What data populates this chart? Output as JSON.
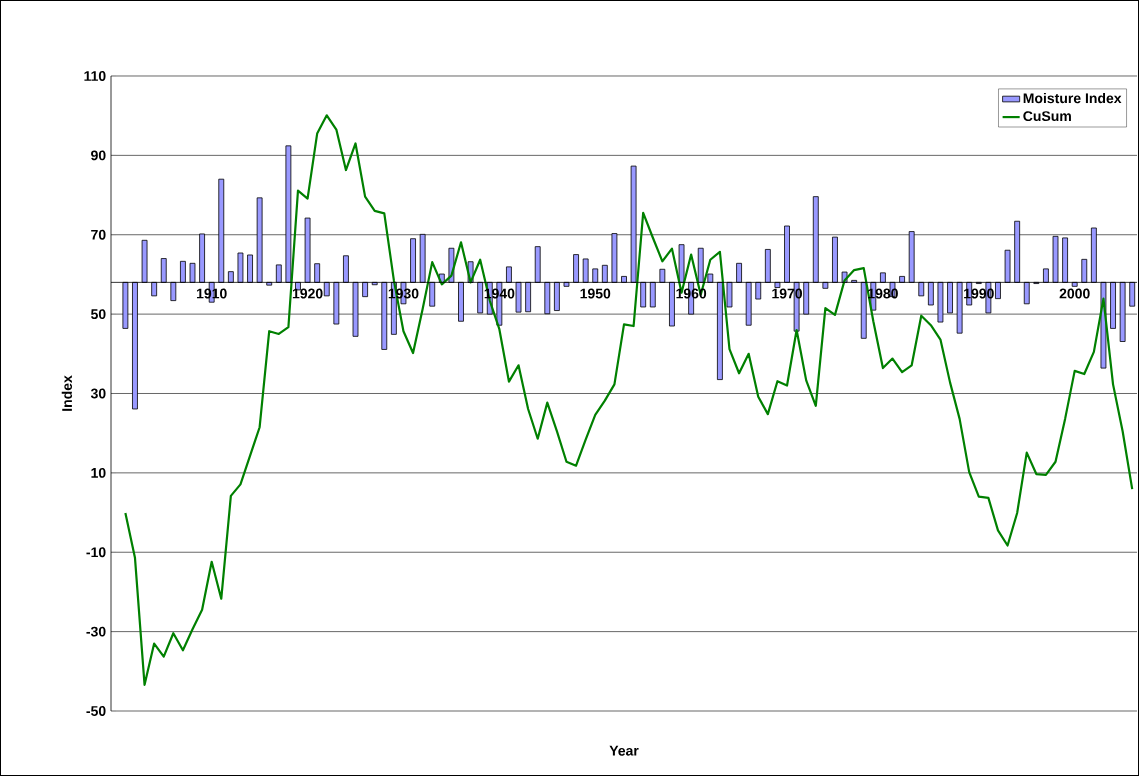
{
  "chart_data": {
    "type": "bar",
    "xlabel": "Year",
    "ylabel": "Index",
    "categories": [
      null,
      null,
      null,
      null,
      null,
      null,
      null,
      null,
      null,
      null,
      "1910",
      null,
      null,
      null,
      null,
      null,
      null,
      null,
      null,
      null,
      "1920",
      null,
      null,
      null,
      null,
      null,
      null,
      null,
      null,
      null,
      "1930",
      null,
      null,
      null,
      null,
      null,
      null,
      null,
      null,
      null,
      "1940",
      null,
      null,
      null,
      null,
      null,
      null,
      null,
      null,
      null,
      "1950",
      null,
      null,
      null,
      null,
      null,
      null,
      null,
      null,
      null,
      "1960",
      null,
      null,
      null,
      null,
      null,
      null,
      null,
      null,
      null,
      "1970",
      null,
      null,
      null,
      null,
      null,
      null,
      null,
      null,
      null,
      "1980",
      null,
      null,
      null,
      null,
      null,
      null,
      null,
      null,
      null,
      "1990",
      null,
      null,
      null,
      null,
      null,
      null,
      null,
      null,
      null,
      "2000",
      null,
      null,
      null,
      null,
      null,
      null
    ],
    "ylim": [
      -50,
      110
    ],
    "yticks": [
      -50,
      -30,
      -10,
      10,
      30,
      50,
      70,
      90,
      110
    ],
    "grid": true,
    "legend": "top right",
    "series": [
      {
        "name": "Moisture Index",
        "color": "#9999ff",
        "base": [
          null,
          58,
          58,
          58,
          58,
          58,
          58,
          58,
          58,
          58,
          58,
          58,
          58,
          58,
          58,
          58,
          58,
          58,
          58,
          58,
          58,
          58,
          58,
          58,
          58,
          58,
          58,
          58,
          58,
          58,
          58,
          58,
          58,
          58,
          58,
          58,
          58,
          58,
          58,
          58,
          58,
          58,
          58,
          58,
          58,
          58,
          58,
          58,
          58,
          58,
          58,
          58,
          58,
          58,
          58,
          58,
          58,
          58,
          58,
          58,
          58,
          58,
          58,
          58,
          58,
          58,
          58,
          58,
          58,
          58,
          58,
          58,
          58,
          58,
          58,
          58,
          58,
          58,
          58,
          58,
          58,
          58,
          58,
          58,
          58,
          58,
          58,
          58,
          58,
          58,
          58,
          58,
          58,
          58,
          58,
          58,
          58,
          58,
          58,
          58,
          58,
          58,
          58,
          58,
          58,
          58,
          58
        ],
        "values": [
          null,
          -11.6,
          -31.9,
          10.6,
          -3.4,
          6.0,
          -4.6,
          5.3,
          4.8,
          12.2,
          -5,
          26.0,
          2.7,
          7.4,
          6.9,
          21.3,
          -0.7,
          4.4,
          34.4,
          -1.9,
          16.2,
          4.7,
          -3.4,
          -10.5,
          6.7,
          -13.6,
          -3.6,
          -0.6,
          -16.9,
          -13.1,
          -5.4,
          11.0,
          12.1,
          -6.0,
          2.1,
          8.6,
          -9.8,
          5.2,
          -7.7,
          -8,
          -10.8,
          3.9,
          -7.5,
          -7.4,
          9.0,
          -7.9,
          -7.1,
          -1.0,
          7.0,
          5.9,
          3.4,
          4.3,
          12.3,
          1.5,
          29.3,
          -6.2,
          -6.2,
          3.3,
          -11.0,
          9.5,
          -8,
          8.6,
          2.1,
          -24.5,
          -6.2,
          4.8,
          -10.8,
          -4.2,
          8.3,
          -1.3,
          14.2,
          -12.3,
          -8,
          21.6,
          -1.5,
          11.4,
          2.6,
          0.5,
          -14.1,
          -7,
          2.4,
          -3.6,
          1.5,
          12.8,
          -3.4,
          -5.7,
          -10.0,
          -7.7,
          -12.8,
          -5.7,
          -0.3,
          -7.7,
          -4.1,
          8.1,
          15.4,
          -5.4,
          -0.3,
          3.4,
          11.6,
          11.2,
          -1.0,
          5.8,
          13.7,
          -21.6,
          -11.6,
          -14.9,
          -6.0
        ]
      },
      {
        "name": "CuSum",
        "type": "line",
        "color": "#008000",
        "values": [
          null,
          -0.1,
          -11.4,
          -43.4,
          -33.0,
          -36.3,
          -30.4,
          -34.7,
          -29.4,
          -24.5,
          -12.4,
          -21.7,
          4.2,
          7.1,
          14.3,
          21.5,
          45.7,
          45.0,
          46.7,
          81.1,
          79.1,
          95.5,
          100.1,
          96.5,
          86.3,
          93.0,
          79.6,
          76.0,
          75.4,
          58.5,
          45.7,
          40.2,
          51.3,
          63.1,
          57.5,
          59.7,
          68.1,
          58.0,
          63.7,
          53.4,
          46.2,
          33.0,
          37.1,
          26.1,
          18.6,
          27.7,
          20.5,
          12.8,
          11.8,
          18.4,
          24.6,
          28.2,
          32.3,
          47.4,
          47,
          75.5,
          69.3,
          63.3,
          66.5,
          55.4,
          65.0,
          54.9,
          63.7,
          65.7,
          41.2,
          35.1,
          40.0,
          29.2,
          24.8,
          33.1,
          32.0,
          46.0,
          33.3,
          26.9,
          51.5,
          49.8,
          58.5,
          61.1,
          61.6,
          48.2,
          36.4,
          38.8,
          35.4,
          37.1,
          49.6,
          47.2,
          43.6,
          32.8,
          23.6,
          10.2,
          4.0,
          3.7,
          -4.5,
          -8.3,
          -0.1,
          15.1,
          9.7,
          9.5,
          12.8,
          23.6,
          35.7,
          34.9,
          40.5,
          53.9,
          32.3,
          20.5,
          5.9
        ]
      }
    ]
  }
}
